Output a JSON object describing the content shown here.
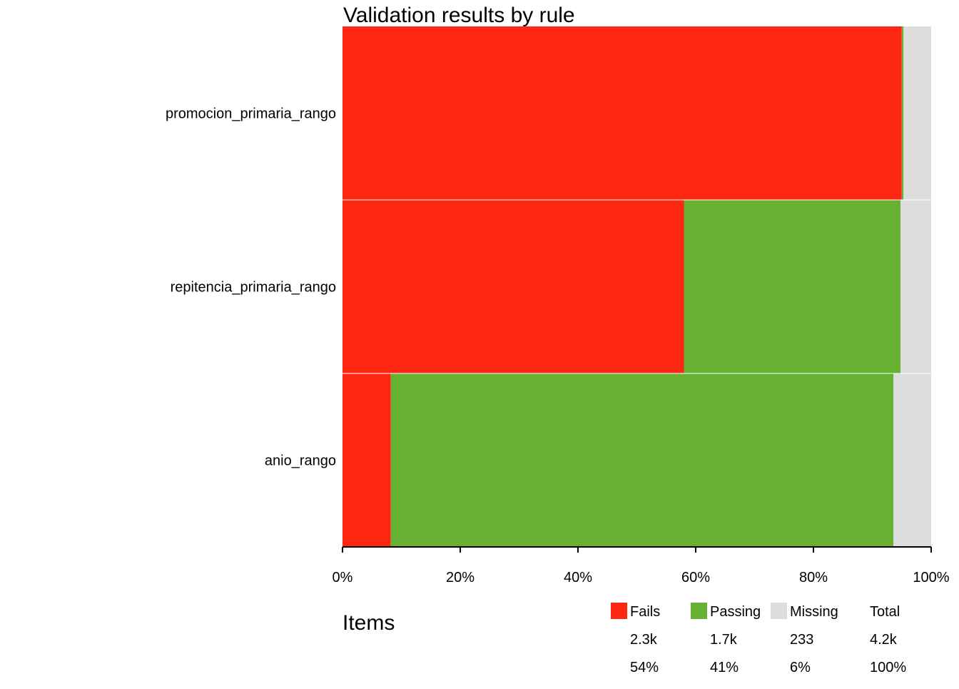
{
  "colors": {
    "fails": "#fe2712",
    "passing": "#66b032",
    "missing": "#dcdcdc",
    "axis": "#000000",
    "separator": "#ffffff"
  },
  "chart_data": {
    "type": "bar",
    "orientation": "horizontal",
    "stacked": true,
    "title": "Validation results by rule",
    "xlabel": "",
    "ylabel": "",
    "xlim": [
      0,
      100
    ],
    "x_ticks": [
      0,
      20,
      40,
      60,
      80,
      100
    ],
    "x_tick_labels": [
      "0%",
      "20%",
      "40%",
      "60%",
      "80%",
      "100%"
    ],
    "categories": [
      "promocion_primaria_rango",
      "repitencia_primaria_rango",
      "anio_rango"
    ],
    "series": [
      {
        "name": "Fails",
        "color_key": "fails",
        "values": [
          95.0,
          58.0,
          8.2
        ]
      },
      {
        "name": "Passing",
        "color_key": "passing",
        "values": [
          0.3,
          36.8,
          85.4
        ]
      },
      {
        "name": "Missing",
        "color_key": "missing",
        "values": [
          4.7,
          5.2,
          6.4
        ]
      }
    ],
    "grid": false,
    "legend_position": "bottom"
  },
  "legend": {
    "title": "Items",
    "entries": [
      {
        "name": "Fails",
        "color_key": "fails",
        "count": "2.3k",
        "percent": "54%"
      },
      {
        "name": "Passing",
        "color_key": "passing",
        "count": "1.7k",
        "percent": "41%"
      },
      {
        "name": "Missing",
        "color_key": "missing",
        "count": "233",
        "percent": "6%"
      },
      {
        "name": "Total",
        "count": "4.2k",
        "percent": "100%"
      }
    ]
  }
}
